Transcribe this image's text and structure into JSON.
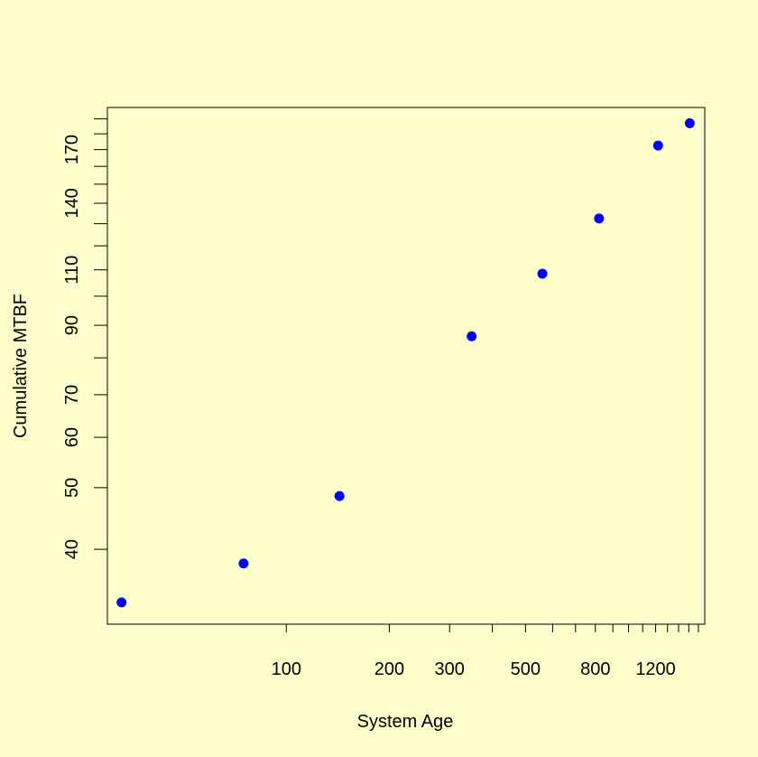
{
  "chart_data": {
    "type": "scatter",
    "xlabel": "System Age",
    "ylabel": "Cumulative MTBF",
    "x_scale": "log",
    "y_scale": "log",
    "xlim": [
      30,
      1670
    ],
    "ylim": [
      30.5,
      198
    ],
    "x_ticks": [
      100,
      200,
      300,
      500,
      800,
      1200
    ],
    "x_minor_ticks": [
      400,
      600,
      700,
      900,
      1000,
      1100,
      1300,
      1400,
      1500,
      1600
    ],
    "y_ticks": [
      40,
      50,
      60,
      70,
      90,
      110,
      140,
      170
    ],
    "y_minor_ticks": [
      80,
      100,
      120,
      130,
      150,
      160,
      180,
      190
    ],
    "x": [
      33,
      75,
      143,
      348,
      560,
      820,
      1220,
      1510
    ],
    "y": [
      33,
      38,
      48.5,
      86.5,
      108.5,
      132.5,
      172.5,
      187
    ],
    "marker_color": "#0000FF",
    "background_color": "#FFFFCC",
    "grid": false,
    "legend": "none"
  }
}
